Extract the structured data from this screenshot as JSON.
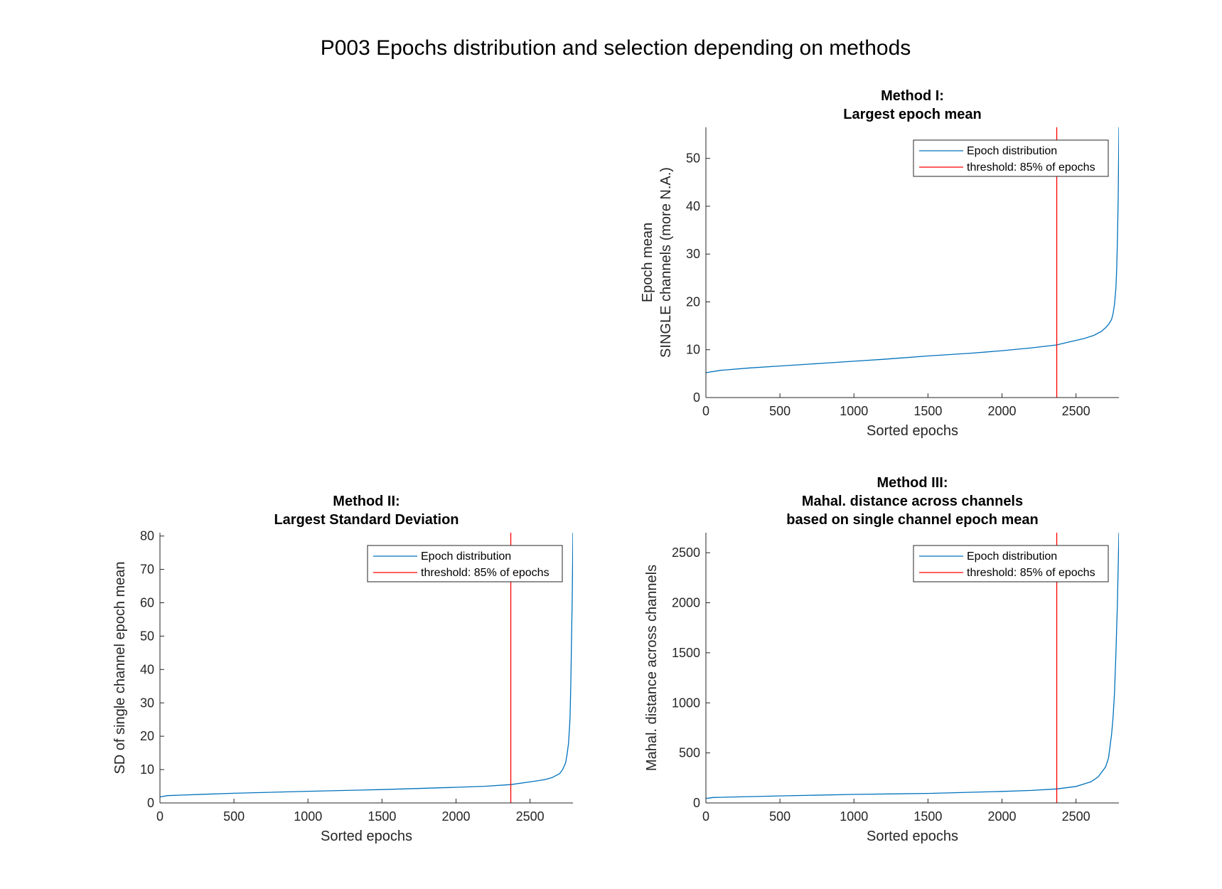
{
  "figure_title": "P003 Epochs distribution and selection depending on methods",
  "legend": {
    "series_label": "Epoch distribution",
    "threshold_label": "threshold: 85% of epochs"
  },
  "colors": {
    "series": "#0072BD",
    "threshold": "#FF0000",
    "axis": "#262626"
  },
  "chart_data": [
    {
      "type": "line",
      "title": [
        "Method I:",
        "Largest epoch mean"
      ],
      "xlabel": "Sorted epochs",
      "ylabel": [
        "Epoch mean",
        "SINGLE channels (more N.A.)"
      ],
      "xlim": [
        0,
        2790
      ],
      "ylim": [
        0,
        56.5
      ],
      "xticks": [
        0,
        500,
        1000,
        1500,
        2000,
        2500
      ],
      "yticks": [
        0,
        10,
        20,
        30,
        40,
        50
      ],
      "threshold_x": 2370,
      "legend_position": "top-right",
      "series": [
        {
          "name": "Epoch distribution",
          "x": [
            0,
            100,
            300,
            500,
            800,
            1000,
            1200,
            1500,
            1800,
            2000,
            2200,
            2370,
            2450,
            2550,
            2620,
            2670,
            2700,
            2720,
            2740,
            2750,
            2760,
            2770,
            2775,
            2780,
            2785,
            2790
          ],
          "y": [
            5.2,
            5.7,
            6.2,
            6.6,
            7.2,
            7.6,
            8.0,
            8.7,
            9.3,
            9.8,
            10.4,
            11.0,
            11.6,
            12.3,
            13.0,
            13.8,
            14.6,
            15.3,
            16.3,
            17.5,
            19.5,
            23,
            27,
            33,
            42,
            56.5
          ]
        }
      ]
    },
    {
      "type": "line",
      "title": [
        "Method II:",
        "Largest Standard Deviation"
      ],
      "xlabel": "Sorted epochs",
      "ylabel": [
        "SD of single channel epoch mean"
      ],
      "xlim": [
        0,
        2790
      ],
      "ylim": [
        0,
        81
      ],
      "xticks": [
        0,
        500,
        1000,
        1500,
        2000,
        2500
      ],
      "yticks": [
        0,
        10,
        20,
        30,
        40,
        50,
        60,
        70,
        80
      ],
      "threshold_x": 2370,
      "legend_position": "top-right",
      "series": [
        {
          "name": "Epoch distribution",
          "x": [
            0,
            50,
            300,
            500,
            1000,
            1500,
            2000,
            2200,
            2370,
            2500,
            2600,
            2650,
            2700,
            2720,
            2740,
            2750,
            2760,
            2770,
            2775,
            2780,
            2785,
            2790
          ],
          "y": [
            1.8,
            2.2,
            2.6,
            2.9,
            3.5,
            4.0,
            4.7,
            5.0,
            5.5,
            6.3,
            7.0,
            7.6,
            8.8,
            10.0,
            12.0,
            14.5,
            18.0,
            25.0,
            35.0,
            48.0,
            62.0,
            81.0
          ]
        }
      ]
    },
    {
      "type": "line",
      "title": [
        "Method III:",
        "Mahal. distance across channels",
        "based on single channel epoch mean"
      ],
      "xlabel": "Sorted epochs",
      "ylabel": [
        "Mahal. distance across channels"
      ],
      "xlim": [
        0,
        2790
      ],
      "ylim": [
        0,
        2700
      ],
      "xticks": [
        0,
        500,
        1000,
        1500,
        2000,
        2500
      ],
      "yticks": [
        0,
        500,
        1000,
        1500,
        2000,
        2500
      ],
      "threshold_x": 2370,
      "legend_position": "top-right",
      "series": [
        {
          "name": "Epoch distribution",
          "x": [
            0,
            50,
            500,
            1000,
            1500,
            2000,
            2200,
            2370,
            2500,
            2600,
            2650,
            2700,
            2720,
            2740,
            2750,
            2760,
            2770,
            2780,
            2790
          ],
          "y": [
            45,
            55,
            70,
            85,
            95,
            115,
            125,
            140,
            165,
            210,
            260,
            360,
            450,
            680,
            850,
            1100,
            1500,
            2000,
            2700
          ]
        }
      ]
    }
  ]
}
